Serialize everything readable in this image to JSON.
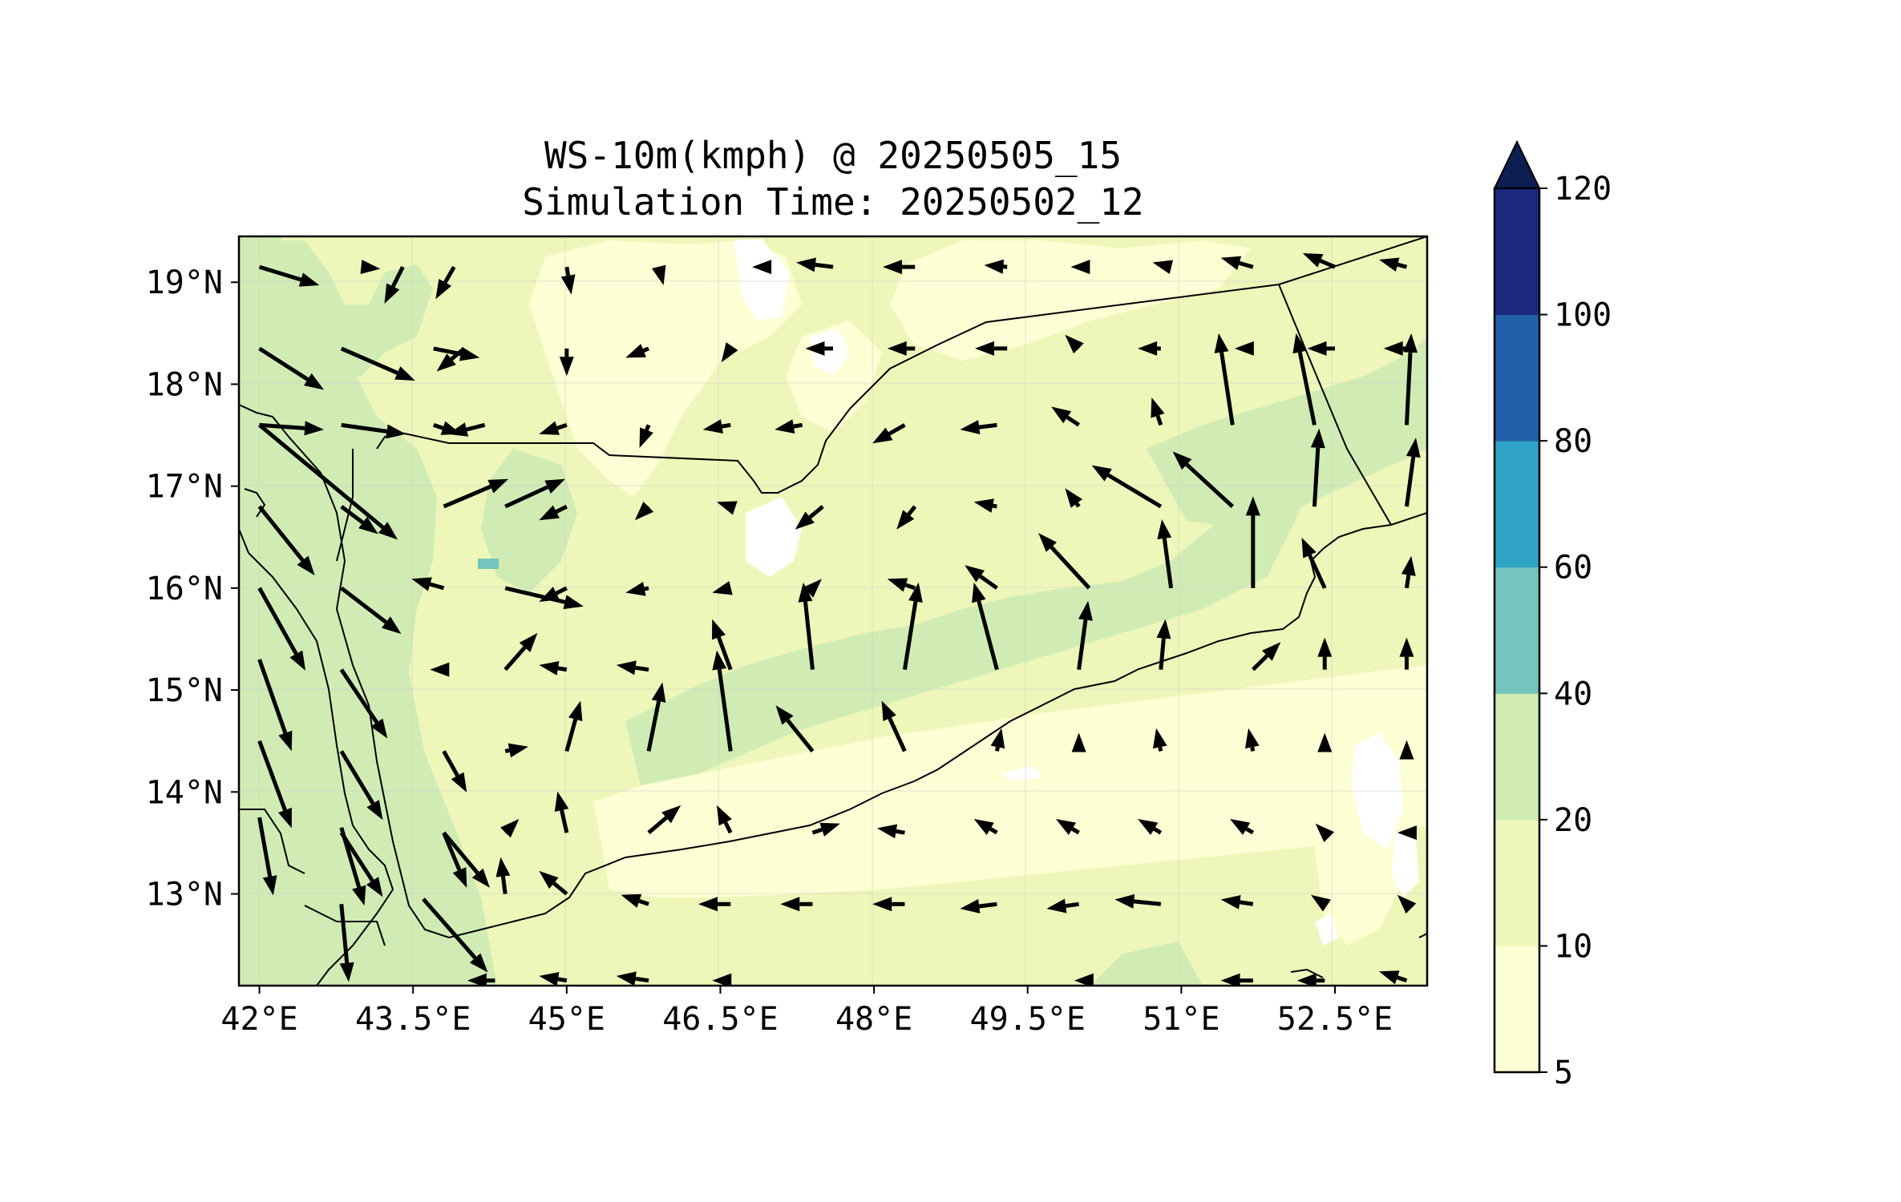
{
  "title": {
    "line1": "WS-10m(kmph) @ 20250505_15",
    "line2": "Simulation Time: 20250502_12"
  },
  "map": {
    "lon_range": [
      41.8,
      53.4
    ],
    "lat_range": [
      12.1,
      19.45
    ],
    "x_ticks": [
      "42°E",
      "43.5°E",
      "45°E",
      "46.5°E",
      "48°E",
      "49.5°E",
      "51°E",
      "52.5°E"
    ],
    "x_tick_values": [
      42,
      43.5,
      45,
      46.5,
      48,
      49.5,
      51,
      52.5
    ],
    "y_ticks": [
      "19°N",
      "18°N",
      "17°N",
      "16°N",
      "15°N",
      "14°N",
      "13°N"
    ],
    "y_tick_values": [
      19,
      18,
      17,
      16,
      15,
      14,
      13
    ],
    "background_color": "#eef7b9",
    "gridlines": true
  },
  "colorbar": {
    "labels": [
      "5",
      "10",
      "20",
      "40",
      "60",
      "80",
      "100",
      "120"
    ],
    "levels": [
      5,
      10,
      20,
      40,
      60,
      80,
      100,
      120
    ],
    "colors": [
      "#fdffd4",
      "#eef7b9",
      "#d0ecb4",
      "#73c5bd",
      "#2ea3c5",
      "#2260a8",
      "#1b2a7f"
    ],
    "extend_color": "#0d1e52",
    "extend": "max"
  },
  "wind_shading": [
    {
      "level": "5-10",
      "color": "#fdffd4",
      "regions": [
        "central interior",
        "Gulf of Aden"
      ]
    },
    {
      "level": "10-20",
      "color": "#eef7b9",
      "regions": [
        "most of domain"
      ]
    },
    {
      "level": "20-40",
      "color": "#d0ecb4",
      "regions": [
        "Red Sea",
        "central Yemen belt",
        "eastern Yemen"
      ]
    },
    {
      "level": "40-60",
      "color": "#73c5bd",
      "regions": [
        "small spot near 44.4°E 16.2°N"
      ]
    }
  ],
  "chart_data": {
    "type": "vector_field",
    "units": "kmph",
    "rows": [
      {
        "lat": 19.0,
        "vectors": [
          [
            42.0,
            19.15,
            0.65,
            -0.2
          ],
          [
            43.0,
            19.15,
            0.2,
            -0.02
          ],
          [
            43.4,
            19.15,
            -0.2,
            -0.4
          ],
          [
            43.9,
            19.15,
            -0.2,
            -0.35
          ],
          [
            45.0,
            19.15,
            0.05,
            -0.3
          ],
          [
            45.9,
            19.15,
            0.05,
            -0.2
          ],
          [
            46.9,
            19.15,
            -0.1,
            0.0
          ],
          [
            47.6,
            19.15,
            -0.4,
            0.05
          ],
          [
            48.4,
            19.15,
            -0.35,
            0.0
          ],
          [
            49.3,
            19.15,
            -0.25,
            0.02
          ],
          [
            50.1,
            19.15,
            -0.2,
            0.0
          ],
          [
            50.9,
            19.15,
            -0.2,
            0.05
          ],
          [
            51.7,
            19.15,
            -0.35,
            0.1
          ],
          [
            52.5,
            19.15,
            -0.35,
            0.15
          ],
          [
            53.2,
            19.15,
            -0.3,
            0.08
          ]
        ]
      },
      {
        "lat": 18.3,
        "vectors": [
          [
            42.0,
            18.35,
            0.7,
            -0.45
          ],
          [
            42.8,
            18.35,
            0.8,
            -0.35
          ],
          [
            43.7,
            18.35,
            0.5,
            -0.1
          ],
          [
            44.0,
            18.35,
            -0.3,
            -0.25
          ],
          [
            45.0,
            18.35,
            0.0,
            -0.3
          ],
          [
            45.8,
            18.35,
            -0.25,
            -0.1
          ],
          [
            46.6,
            18.35,
            -0.1,
            -0.15
          ],
          [
            47.6,
            18.35,
            -0.3,
            0.0
          ],
          [
            48.4,
            18.35,
            -0.3,
            0.0
          ],
          [
            49.3,
            18.35,
            -0.35,
            0.0
          ],
          [
            50.0,
            18.35,
            -0.15,
            0.15
          ],
          [
            50.8,
            18.35,
            -0.25,
            0.0
          ],
          [
            51.7,
            18.35,
            -0.2,
            0.0
          ],
          [
            52.5,
            18.35,
            -0.3,
            0.0
          ],
          [
            53.2,
            18.35,
            -0.25,
            0.0
          ]
        ]
      },
      {
        "lat": 17.6,
        "vectors": [
          [
            42.0,
            17.6,
            0.7,
            -0.05
          ],
          [
            42.8,
            17.6,
            0.7,
            -0.1
          ],
          [
            43.7,
            17.6,
            0.3,
            -0.1
          ],
          [
            44.2,
            17.6,
            -0.4,
            -0.1
          ],
          [
            45.0,
            17.6,
            -0.3,
            -0.1
          ],
          [
            45.8,
            17.6,
            -0.1,
            -0.25
          ],
          [
            46.6,
            17.6,
            -0.3,
            -0.05
          ],
          [
            47.3,
            17.6,
            -0.3,
            -0.05
          ],
          [
            48.3,
            17.6,
            -0.35,
            -0.2
          ],
          [
            49.2,
            17.6,
            -0.4,
            -0.05
          ],
          [
            50.0,
            17.6,
            -0.3,
            0.2
          ],
          [
            50.8,
            17.6,
            -0.1,
            0.3
          ],
          [
            51.5,
            17.6,
            -0.15,
            1.0
          ],
          [
            52.3,
            17.6,
            -0.2,
            1.0
          ],
          [
            53.2,
            17.6,
            0.05,
            1.0
          ]
        ]
      },
      {
        "lat": 16.8,
        "vectors": [
          [
            42.0,
            17.6,
            1.5,
            -1.25
          ],
          [
            42.8,
            16.8,
            0.4,
            -0.3
          ],
          [
            43.8,
            16.8,
            0.7,
            0.3
          ],
          [
            44.4,
            16.8,
            0.65,
            0.3
          ],
          [
            45.0,
            16.8,
            -0.3,
            -0.15
          ],
          [
            45.8,
            16.8,
            -0.15,
            -0.15
          ],
          [
            46.6,
            16.8,
            -0.15,
            0.05
          ],
          [
            47.5,
            16.8,
            -0.3,
            -0.25
          ],
          [
            48.4,
            16.8,
            -0.2,
            -0.25
          ],
          [
            49.2,
            16.8,
            -0.25,
            0.05
          ],
          [
            50.0,
            16.8,
            -0.15,
            0.2
          ],
          [
            50.8,
            16.8,
            -0.75,
            0.45
          ],
          [
            51.5,
            16.8,
            -0.65,
            0.6
          ],
          [
            52.3,
            16.8,
            0.05,
            0.85
          ],
          [
            53.2,
            16.8,
            0.1,
            0.75
          ]
        ]
      },
      {
        "lat": 16.0,
        "vectors": [
          [
            42.0,
            16.8,
            0.6,
            -0.75
          ],
          [
            42.8,
            16.0,
            0.65,
            -0.5
          ],
          [
            43.8,
            16.0,
            -0.35,
            0.1
          ],
          [
            44.4,
            16.0,
            0.85,
            -0.2
          ],
          [
            45.0,
            16.0,
            -0.3,
            -0.15
          ],
          [
            45.8,
            16.0,
            -0.25,
            -0.05
          ],
          [
            46.6,
            16.0,
            -0.2,
            -0.05
          ],
          [
            47.4,
            16.0,
            0.1,
            0.1
          ],
          [
            48.4,
            16.0,
            -0.3,
            0.1
          ],
          [
            49.2,
            16.0,
            -0.35,
            0.25
          ],
          [
            50.1,
            16.0,
            -0.55,
            0.6
          ],
          [
            50.9,
            16.0,
            -0.1,
            0.75
          ],
          [
            51.7,
            16.0,
            0.0,
            1.0
          ],
          [
            52.4,
            16.0,
            -0.25,
            0.55
          ],
          [
            53.2,
            16.0,
            0.05,
            0.35
          ]
        ]
      },
      {
        "lat": 15.2,
        "vectors": [
          [
            42.0,
            16.0,
            0.5,
            -0.9
          ],
          [
            42.8,
            15.2,
            0.5,
            -0.75
          ],
          [
            43.8,
            15.2,
            -0.15,
            0.0
          ],
          [
            44.4,
            15.2,
            0.35,
            0.4
          ],
          [
            45.0,
            15.2,
            -0.3,
            0.05
          ],
          [
            45.8,
            15.2,
            -0.35,
            0.05
          ],
          [
            46.6,
            15.2,
            -0.2,
            0.55
          ],
          [
            47.4,
            15.2,
            -0.1,
            0.95
          ],
          [
            48.3,
            15.2,
            0.15,
            0.95
          ],
          [
            49.2,
            15.2,
            -0.25,
            0.95
          ],
          [
            50.0,
            15.2,
            0.1,
            0.75
          ],
          [
            50.8,
            15.2,
            0.05,
            0.55
          ],
          [
            51.7,
            15.2,
            0.3,
            0.3
          ],
          [
            52.4,
            15.2,
            0.0,
            0.35
          ],
          [
            53.2,
            15.2,
            0.0,
            0.35
          ]
        ]
      },
      {
        "lat": 14.4,
        "vectors": [
          [
            42.0,
            15.3,
            0.35,
            -1.0
          ],
          [
            42.8,
            14.4,
            0.45,
            -0.75
          ],
          [
            43.8,
            14.4,
            0.25,
            -0.45
          ],
          [
            44.4,
            14.4,
            0.25,
            0.05
          ],
          [
            45.0,
            14.4,
            0.15,
            0.55
          ],
          [
            45.8,
            14.4,
            0.15,
            0.75
          ],
          [
            46.6,
            14.4,
            -0.15,
            1.1
          ],
          [
            47.4,
            14.4,
            -0.4,
            0.5
          ],
          [
            48.3,
            14.4,
            -0.25,
            0.55
          ],
          [
            49.2,
            14.4,
            0.05,
            0.25
          ],
          [
            50.0,
            14.4,
            0.0,
            0.2
          ],
          [
            50.8,
            14.4,
            -0.05,
            0.25
          ],
          [
            51.7,
            14.4,
            -0.05,
            0.25
          ],
          [
            52.4,
            14.4,
            0.0,
            0.2
          ],
          [
            53.2,
            14.4,
            0.0,
            0.12
          ]
        ]
      },
      {
        "lat": 13.6,
        "vectors": [
          [
            42.0,
            14.5,
            0.35,
            -0.95
          ],
          [
            42.8,
            13.6,
            0.45,
            -0.7
          ],
          [
            43.8,
            13.6,
            0.25,
            -0.6
          ],
          [
            44.4,
            13.6,
            0.15,
            0.15
          ],
          [
            45.0,
            13.6,
            -0.1,
            0.45
          ],
          [
            45.8,
            13.6,
            0.35,
            0.3
          ],
          [
            46.6,
            13.6,
            -0.15,
            0.3
          ],
          [
            47.4,
            13.6,
            0.3,
            0.1
          ],
          [
            48.3,
            13.6,
            -0.3,
            0.05
          ],
          [
            49.2,
            13.6,
            -0.25,
            0.15
          ],
          [
            50.0,
            13.6,
            -0.25,
            0.15
          ],
          [
            50.8,
            13.6,
            -0.25,
            0.15
          ],
          [
            51.7,
            13.6,
            -0.25,
            0.15
          ],
          [
            52.4,
            13.6,
            -0.1,
            0.1
          ],
          [
            53.2,
            13.6,
            -0.1,
            0.0
          ]
        ]
      },
      {
        "lat": 12.9,
        "vectors": [
          [
            42.0,
            13.75,
            0.15,
            -0.85
          ],
          [
            42.8,
            13.65,
            0.25,
            -0.85
          ],
          [
            43.8,
            13.6,
            0.5,
            -0.6
          ],
          [
            44.4,
            13.0,
            -0.05,
            0.4
          ],
          [
            45.0,
            13.0,
            -0.3,
            0.25
          ],
          [
            45.8,
            12.9,
            -0.3,
            0.1
          ],
          [
            46.6,
            12.9,
            -0.35,
            0.0
          ],
          [
            47.4,
            12.9,
            -0.35,
            0.0
          ],
          [
            48.3,
            12.9,
            -0.35,
            0.0
          ],
          [
            49.2,
            12.9,
            -0.4,
            -0.05
          ],
          [
            50.0,
            12.9,
            -0.35,
            -0.05
          ],
          [
            50.8,
            12.9,
            -0.5,
            0.05
          ],
          [
            51.7,
            12.9,
            -0.35,
            0.05
          ],
          [
            52.4,
            12.9,
            -0.15,
            0.1
          ],
          [
            53.2,
            12.9,
            -0.1,
            0.1
          ]
        ]
      },
      {
        "lat": 12.2,
        "vectors": [
          [
            42.8,
            12.9,
            0.08,
            -0.85
          ],
          [
            43.6,
            12.95,
            0.7,
            -0.8
          ],
          [
            44.3,
            12.15,
            -0.3,
            0.0
          ],
          [
            45.0,
            12.15,
            -0.3,
            0.05
          ],
          [
            45.8,
            12.15,
            -0.35,
            0.05
          ],
          [
            46.6,
            12.15,
            -0.2,
            0.0
          ],
          [
            50.0,
            12.15,
            -0.05,
            0.0
          ],
          [
            51.7,
            12.15,
            -0.35,
            0.0
          ],
          [
            52.4,
            12.15,
            -0.3,
            0.0
          ],
          [
            53.2,
            12.15,
            -0.3,
            0.1
          ]
        ]
      }
    ]
  }
}
